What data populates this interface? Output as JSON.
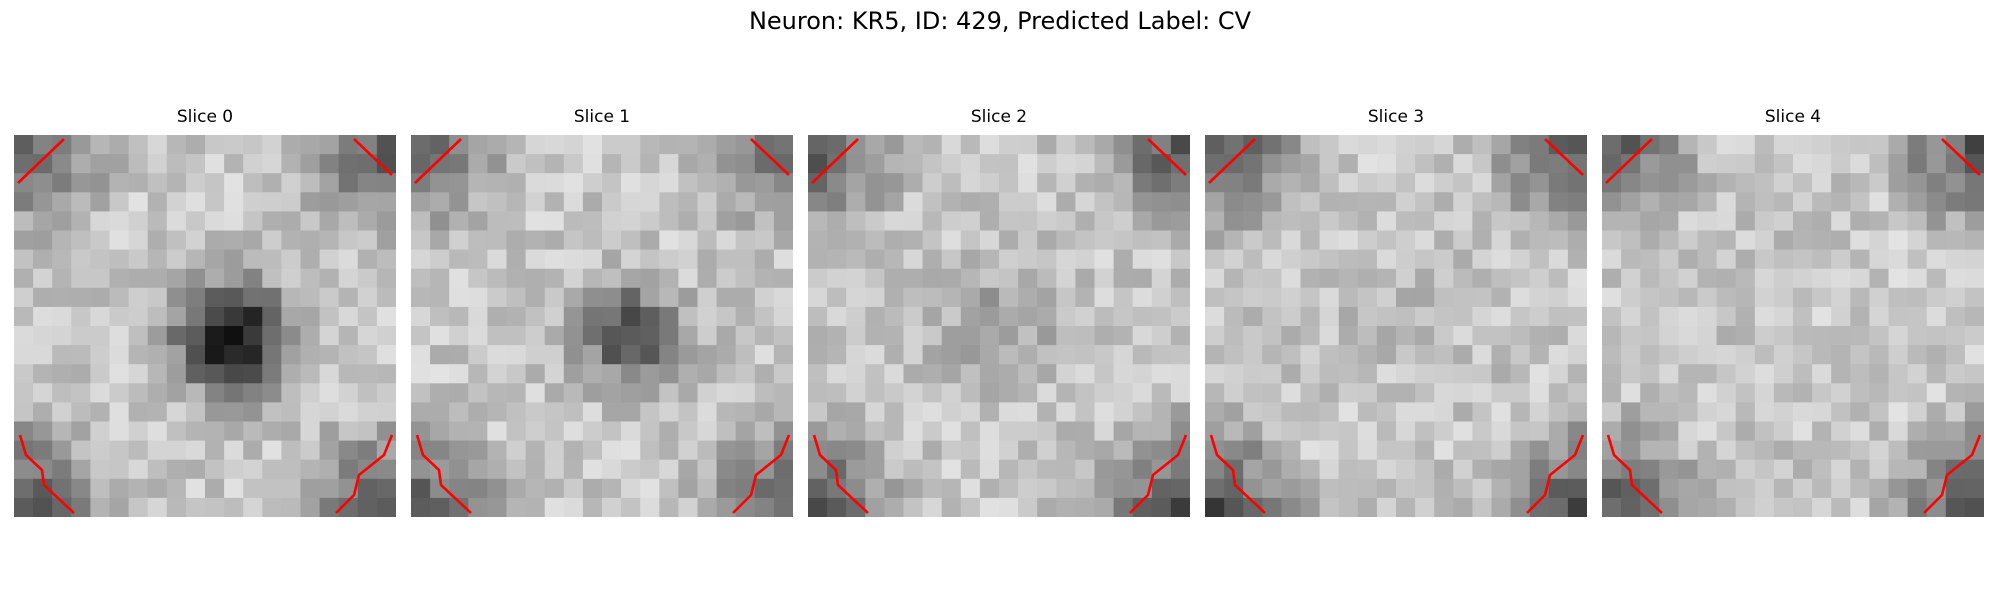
{
  "figure": {
    "title": "Neuron: KR5, ID: 429, Predicted Label: CV",
    "grid": "20x20",
    "colormap": "gray",
    "overlay_color": "#ff0000"
  },
  "slices": [
    {
      "label": "Slice 0",
      "center_dark": 1.0,
      "center": [
        0.57,
        0.53
      ],
      "spread": 0.1,
      "corner_dark": 0.55
    },
    {
      "label": "Slice 1",
      "center_dark": 0.65,
      "center": [
        0.57,
        0.52
      ],
      "spread": 0.09,
      "corner_dark": 0.5
    },
    {
      "label": "Slice 2",
      "center_dark": 0.2,
      "center": [
        0.5,
        0.5
      ],
      "spread": 0.12,
      "corner_dark": 0.55
    },
    {
      "label": "Slice 3",
      "center_dark": 0.05,
      "center": [
        0.5,
        0.5
      ],
      "spread": 0.12,
      "corner_dark": 0.6
    },
    {
      "label": "Slice 4",
      "center_dark": 0.0,
      "center": [
        0.5,
        0.5
      ],
      "spread": 0.12,
      "corner_dark": 0.55
    }
  ]
}
